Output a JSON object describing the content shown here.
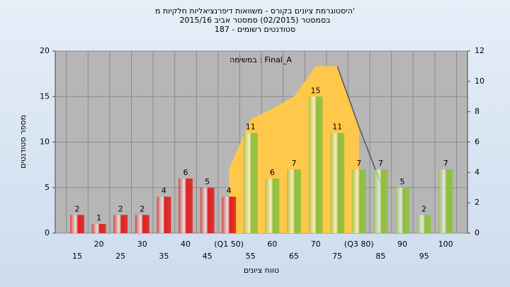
{
  "chart_data": {
    "type": "bar",
    "title": [
      "היסטוגרמת ציונים בקורס - משוואות דיפרנציאליות חלקיות מ'",
      "בסמסטר  (02/2015)  סמסטר אביב 2015/16",
      "סטודנטים רשומים - 187"
    ],
    "annotation": "במשימה : Final_A",
    "ylabel": "מספר סטודנטים",
    "xlabel": "טווח ציונים",
    "categories": [
      "15",
      "20",
      "25",
      "30",
      "35",
      "40",
      "45",
      "(Q1 50)",
      "55",
      "60",
      "65",
      "70",
      "75",
      "(Q3 80)",
      "85",
      "90",
      "95",
      "100"
    ],
    "values": [
      2,
      1,
      2,
      2,
      4,
      6,
      5,
      4,
      11,
      6,
      7,
      15,
      11,
      7,
      7,
      5,
      2,
      7
    ],
    "colors": [
      "#e02020",
      "#e02020",
      "#e02020",
      "#e02020",
      "#e02020",
      "#e02020",
      "#e02020",
      "#e02020",
      "#8fbf3f",
      "#8fbf3f",
      "#8fbf3f",
      "#8fbf3f",
      "#8fbf3f",
      "#8fbf3f",
      "#8fbf3f",
      "#8fbf3f",
      "#8fbf3f",
      "#8fbf3f"
    ],
    "ylim": [
      0,
      20
    ],
    "yticks": [
      0,
      5,
      10,
      15,
      20
    ],
    "y2lim": [
      0,
      12
    ],
    "y2ticks": [
      0,
      2,
      4,
      6,
      8,
      10,
      12
    ],
    "overlays": [
      {
        "type": "area",
        "axis": "y2",
        "color": "#ffc84a",
        "values": [
          null,
          null,
          null,
          null,
          null,
          null,
          null,
          4.2,
          7.5,
          8.2,
          9,
          11,
          11,
          7,
          null,
          null,
          null,
          null
        ]
      },
      {
        "type": "line",
        "axis": "y2",
        "color": "#555555",
        "values": [
          null,
          null,
          null,
          null,
          null,
          null,
          null,
          null,
          null,
          null,
          null,
          null,
          11,
          7,
          3.3,
          null,
          null,
          null
        ]
      }
    ],
    "grid": true
  }
}
